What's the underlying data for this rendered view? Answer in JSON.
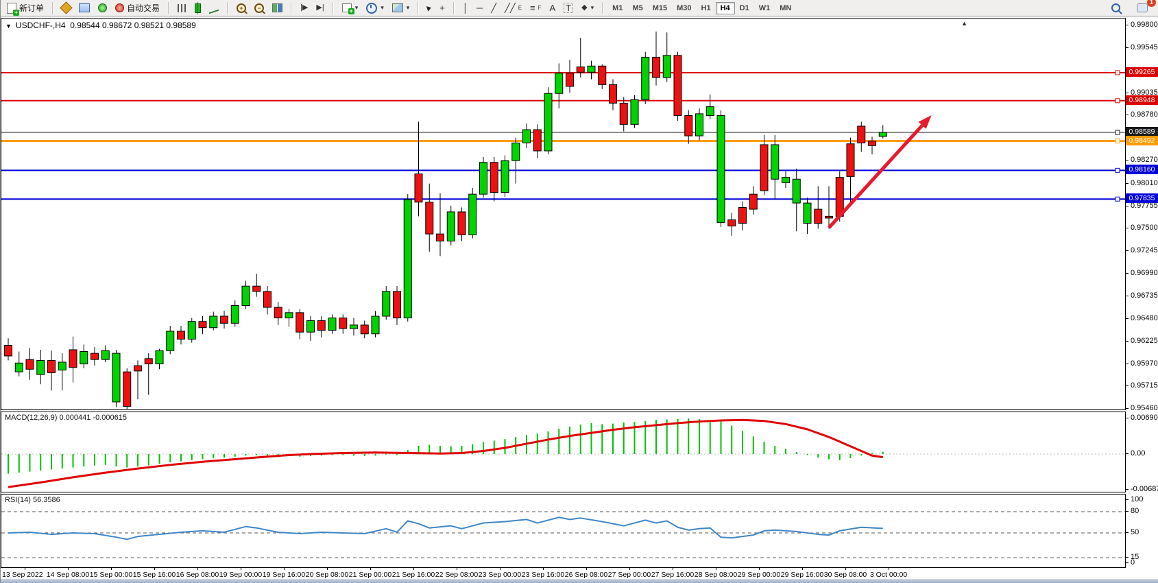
{
  "toolbar": {
    "new_order_label": "新订单",
    "autotrading_label": "自动交易",
    "text_tool_label": "A",
    "text_label_tool_label": "T",
    "channel_tool_label": "E",
    "fibonacci_tool_label": "F",
    "timeframes": [
      "M1",
      "M5",
      "M15",
      "M30",
      "H1",
      "H4",
      "D1",
      "W1",
      "MN"
    ],
    "active_timeframe": "H4",
    "notification_count": "1",
    "icons": [
      "new-order-icon",
      "indicators-icon",
      "charts-window-icon",
      "signals-icon",
      "autotrading-icon",
      "bar-chart-icon",
      "candlestick-chart-icon",
      "line-chart-icon",
      "zoom-in-icon",
      "zoom-out-icon",
      "tile-windows-icon",
      "auto-scroll-icon",
      "chart-shift-icon",
      "new-chart-icon",
      "periods-clock-icon",
      "template-icon",
      "cursor-icon",
      "crosshair-icon",
      "vertical-line-icon",
      "horizontal-line-icon",
      "trendline-icon",
      "channel-icon",
      "fibonacci-icon",
      "text-icon",
      "text-label-icon",
      "shapes-icon",
      "search-icon",
      "chat-icon"
    ]
  },
  "chart": {
    "title_symbol": "USDCHF-,H4",
    "title_ohlc": "0.98544 0.98672 0.98521 0.98589"
  },
  "chart_data": {
    "type": "candlestick",
    "symbol": "USDCHF-",
    "timeframe": "H4",
    "current_bar": {
      "open": "0.98544",
      "high": "0.98672",
      "low": "0.98521",
      "close": "0.98589"
    },
    "colors": {
      "bull": "#00d300",
      "bear": "#ee1111",
      "wick": "#000000",
      "macd_hist": "#00c300",
      "macd_signal": "#e00000",
      "rsi_line": "#3e86c8",
      "line_red": "#dd0000",
      "line_blue": "#0000d8",
      "line_orange": "#ff9c00",
      "line_black": "#1a1a1a",
      "arrow": "#e8192c"
    },
    "price_axis": {
      "max": 0.998,
      "min": 0.9546,
      "ticks": [
        "0.99800",
        "0.99545",
        "0.99035",
        "0.98780",
        "0.98270",
        "0.98010",
        "0.97755",
        "0.97500",
        "0.97245",
        "0.96990",
        "0.96735",
        "0.96480",
        "0.96225",
        "0.95970",
        "0.95715",
        "0.95460"
      ]
    },
    "horizontal_lines": [
      {
        "price": 0.99265,
        "label": "0.99265",
        "color": "#dd0000",
        "width": 2
      },
      {
        "price": 0.98948,
        "label": "0.98948",
        "color": "#dd0000",
        "width": 2
      },
      {
        "price": 0.98589,
        "label": "0.98589",
        "color": "#1a1a1a",
        "width": 1
      },
      {
        "price": 0.98492,
        "label": "0.98492",
        "color": "#ff9c00",
        "width": 3
      },
      {
        "price": 0.9816,
        "label": "0.98160",
        "color": "#0000d8",
        "width": 2
      },
      {
        "price": 0.97835,
        "label": "0.97835",
        "color": "#0000d8",
        "width": 2
      }
    ],
    "trend_arrow": {
      "from_bar": 76,
      "from_price": 0.9751,
      "to_bar": 85.5,
      "to_price": 0.98783
    },
    "candles": [
      [
        0.9618,
        0.9606,
        0.9626,
        0.9601,
        "r"
      ],
      [
        0.9598,
        0.9588,
        0.9611,
        0.9583,
        "g"
      ],
      [
        0.9602,
        0.9591,
        0.9615,
        0.9579,
        "r"
      ],
      [
        0.9601,
        0.9585,
        0.9613,
        0.9574,
        "g"
      ],
      [
        0.9601,
        0.9587,
        0.9612,
        0.9567,
        "r"
      ],
      [
        0.9599,
        0.959,
        0.9609,
        0.9567,
        "g"
      ],
      [
        0.9613,
        0.9593,
        0.9628,
        0.9576,
        "r"
      ],
      [
        0.9611,
        0.9597,
        0.9619,
        0.9592,
        "g"
      ],
      [
        0.9609,
        0.9602,
        0.9616,
        0.9595,
        "r"
      ],
      [
        0.9612,
        0.9602,
        0.9618,
        0.9599,
        "g"
      ],
      [
        0.9609,
        0.9554,
        0.9613,
        0.9548,
        "g"
      ],
      [
        0.9588,
        0.9549,
        0.9592,
        0.9546,
        "r"
      ],
      [
        0.9595,
        0.9589,
        0.9601,
        0.9557,
        "r"
      ],
      [
        0.9603,
        0.9597,
        0.9609,
        0.9562,
        "r"
      ],
      [
        0.9612,
        0.9597,
        0.9614,
        0.9591,
        "g"
      ],
      [
        0.9634,
        0.9612,
        0.964,
        0.9608,
        "g"
      ],
      [
        0.9634,
        0.9625,
        0.964,
        0.9619,
        "r"
      ],
      [
        0.9645,
        0.9625,
        0.9649,
        0.9621,
        "g"
      ],
      [
        0.9645,
        0.9638,
        0.9651,
        0.9631,
        "r"
      ],
      [
        0.9651,
        0.9638,
        0.9656,
        0.9635,
        "g"
      ],
      [
        0.9651,
        0.9643,
        0.9657,
        0.9637,
        "r"
      ],
      [
        0.9663,
        0.9643,
        0.9669,
        0.9639,
        "g"
      ],
      [
        0.9685,
        0.9663,
        0.9691,
        0.9659,
        "g"
      ],
      [
        0.9685,
        0.9679,
        0.9699,
        0.9673,
        "r"
      ],
      [
        0.9679,
        0.9661,
        0.9685,
        0.9653,
        "r"
      ],
      [
        0.9661,
        0.9649,
        0.9667,
        0.9641,
        "r"
      ],
      [
        0.9655,
        0.9649,
        0.9659,
        0.9639,
        "g"
      ],
      [
        0.9655,
        0.9633,
        0.9659,
        0.9625,
        "r"
      ],
      [
        0.9646,
        0.9633,
        0.9651,
        0.9623,
        "g"
      ],
      [
        0.9646,
        0.9635,
        0.9651,
        0.9627,
        "r"
      ],
      [
        0.9649,
        0.9635,
        0.9653,
        0.9631,
        "g"
      ],
      [
        0.9649,
        0.9637,
        0.9653,
        0.9631,
        "r"
      ],
      [
        0.9641,
        0.9637,
        0.9649,
        0.9629,
        "g"
      ],
      [
        0.9641,
        0.9631,
        0.9646,
        0.9626,
        "r"
      ],
      [
        0.9651,
        0.9631,
        0.9657,
        0.9627,
        "g"
      ],
      [
        0.9679,
        0.9651,
        0.9685,
        0.9647,
        "g"
      ],
      [
        0.9679,
        0.9649,
        0.9685,
        0.9641,
        "r"
      ],
      [
        0.9783,
        0.9649,
        0.9789,
        0.9645,
        "g"
      ],
      [
        0.9812,
        0.978,
        0.9871,
        0.9764,
        "r"
      ],
      [
        0.978,
        0.9744,
        0.9801,
        0.9724,
        "r"
      ],
      [
        0.9744,
        0.9736,
        0.979,
        0.9719,
        "r"
      ],
      [
        0.9769,
        0.9736,
        0.9776,
        0.9731,
        "g"
      ],
      [
        0.9769,
        0.9743,
        0.9774,
        0.9736,
        "r"
      ],
      [
        0.9789,
        0.9743,
        0.9796,
        0.9739,
        "g"
      ],
      [
        0.9825,
        0.9789,
        0.9831,
        0.9785,
        "g"
      ],
      [
        0.9825,
        0.9791,
        0.9831,
        0.9781,
        "r"
      ],
      [
        0.9827,
        0.9791,
        0.9833,
        0.9786,
        "g"
      ],
      [
        0.9847,
        0.9827,
        0.9853,
        0.9801,
        "g"
      ],
      [
        0.9862,
        0.9847,
        0.9869,
        0.9841,
        "g"
      ],
      [
        0.9862,
        0.9838,
        0.9868,
        0.983,
        "r"
      ],
      [
        0.9903,
        0.9838,
        0.991,
        0.9834,
        "g"
      ],
      [
        0.9926,
        0.9903,
        0.9937,
        0.9886,
        "g"
      ],
      [
        0.9926,
        0.9911,
        0.9941,
        0.9904,
        "r"
      ],
      [
        0.9933,
        0.9927,
        0.9966,
        0.9921,
        "r"
      ],
      [
        0.9934,
        0.9927,
        0.994,
        0.9919,
        "g"
      ],
      [
        0.9934,
        0.9913,
        0.9936,
        0.9908,
        "r"
      ],
      [
        0.9913,
        0.9892,
        0.9919,
        0.9884,
        "r"
      ],
      [
        0.9892,
        0.9868,
        0.9899,
        0.986,
        "r"
      ],
      [
        0.9896,
        0.9868,
        0.9901,
        0.9864,
        "g"
      ],
      [
        0.9944,
        0.9896,
        0.995,
        0.9891,
        "g"
      ],
      [
        0.9944,
        0.9921,
        0.9973,
        0.9912,
        "r"
      ],
      [
        0.9946,
        0.9921,
        0.9972,
        0.9916,
        "g"
      ],
      [
        0.9946,
        0.9878,
        0.995,
        0.9872,
        "r"
      ],
      [
        0.9878,
        0.9855,
        0.9884,
        0.9846,
        "r"
      ],
      [
        0.988,
        0.9855,
        0.9886,
        0.985,
        "g"
      ],
      [
        0.9888,
        0.9878,
        0.9902,
        0.9874,
        "g"
      ],
      [
        0.9878,
        0.9757,
        0.9884,
        0.9752,
        "g"
      ],
      [
        0.976,
        0.9753,
        0.9768,
        0.9742,
        "r"
      ],
      [
        0.9774,
        0.9756,
        0.9781,
        0.9748,
        "r"
      ],
      [
        0.9789,
        0.9772,
        0.9798,
        0.9766,
        "r"
      ],
      [
        0.9845,
        0.9793,
        0.9856,
        0.9788,
        "r"
      ],
      [
        0.9845,
        0.9806,
        0.9856,
        0.9783,
        "g"
      ],
      [
        0.9808,
        0.9802,
        0.9815,
        0.9796,
        "g"
      ],
      [
        0.9806,
        0.9779,
        0.9818,
        0.9747,
        "g"
      ],
      [
        0.9779,
        0.9756,
        0.9785,
        0.9744,
        "g"
      ],
      [
        0.9772,
        0.9756,
        0.9798,
        0.975,
        "r"
      ],
      [
        0.9764,
        0.9762,
        0.9798,
        0.975,
        "r"
      ],
      [
        0.9808,
        0.9764,
        0.9815,
        0.9758,
        "r"
      ],
      [
        0.9846,
        0.9809,
        0.9853,
        0.9778,
        "r"
      ],
      [
        0.9866,
        0.9847,
        0.9871,
        0.9837,
        "r"
      ],
      [
        0.9849,
        0.9844,
        0.9854,
        0.9834,
        "r"
      ],
      [
        0.98589,
        0.98544,
        0.98672,
        0.98521,
        "g"
      ]
    ],
    "time_axis": [
      "13 Sep 2022",
      "14 Sep 08:00",
      "15 Sep 00:00",
      "15 Sep 16:00",
      "16 Sep 08:00",
      "19 Sep 00:00",
      "19 Sep 16:00",
      "20 Sep 08:00",
      "21 Sep 00:00",
      "21 Sep 16:00",
      "22 Sep 08:00",
      "23 Sep 00:00",
      "23 Sep 16:00",
      "26 Sep 08:00",
      "27 Sep 00:00",
      "27 Sep 16:00",
      "28 Sep 08:00",
      "29 Sep 00:00",
      "29 Sep 16:00",
      "30 Sep 08:00",
      "3 Oct 00:00"
    ],
    "macd": {
      "name": "MACD(12,26,9)",
      "value": "0.000441",
      "signal_value": "-0.000615",
      "axis_ticks": [
        "0.006906",
        "0.00",
        "-0.006874"
      ],
      "axis_max": 0.006906,
      "axis_min": -0.006874,
      "histogram": [
        -0.0038,
        -0.0036,
        -0.0034,
        -0.0032,
        -0.003,
        -0.0028,
        -0.0026,
        -0.0024,
        -0.0022,
        -0.0021,
        -0.0024,
        -0.0026,
        -0.0024,
        -0.0022,
        -0.0019,
        -0.0016,
        -0.0014,
        -0.0012,
        -0.001,
        -0.0008,
        -0.0007,
        -0.0005,
        -0.0003,
        -0.0002,
        -0.0003,
        -0.0004,
        -0.0004,
        -0.0005,
        -0.0004,
        -0.0003,
        -0.0002,
        -0.0002,
        -0.0003,
        -0.0004,
        -0.0003,
        -0.0001,
        -0.0002,
        0.0008,
        0.0016,
        0.0018,
        0.0016,
        0.0015,
        0.0016,
        0.0019,
        0.0023,
        0.0026,
        0.0029,
        0.0033,
        0.0037,
        0.004,
        0.0044,
        0.0049,
        0.0053,
        0.0057,
        0.006,
        0.0058,
        0.0059,
        0.0061,
        0.0062,
        0.0064,
        0.0066,
        0.0067,
        0.0068,
        0.0069,
        0.0068,
        0.0066,
        0.0063,
        0.0055,
        0.0045,
        0.0034,
        0.0024,
        0.0016,
        0.001,
        0.0004,
        -0.0002,
        -0.0007,
        -0.001,
        -0.0012,
        -0.0008,
        -0.0003,
        0.0002,
        0.00044
      ],
      "signal": [
        [
          0,
          -0.0064
        ],
        [
          3,
          -0.0055
        ],
        [
          6,
          -0.0045
        ],
        [
          9,
          -0.0036
        ],
        [
          12,
          -0.0028
        ],
        [
          15,
          -0.0021
        ],
        [
          18,
          -0.0015
        ],
        [
          21,
          -0.001
        ],
        [
          24,
          -0.0005
        ],
        [
          26,
          -0.0002
        ],
        [
          28,
          0.0
        ],
        [
          31,
          0.0002
        ],
        [
          34,
          0.0003
        ],
        [
          37,
          0.0002
        ],
        [
          40,
          0.0001
        ],
        [
          42,
          0.0002
        ],
        [
          44,
          0.0006
        ],
        [
          46,
          0.0012
        ],
        [
          48,
          0.002
        ],
        [
          50,
          0.0028
        ],
        [
          52,
          0.0035
        ],
        [
          54,
          0.0041
        ],
        [
          56,
          0.0047
        ],
        [
          58,
          0.0052
        ],
        [
          60,
          0.0056
        ],
        [
          62,
          0.006
        ],
        [
          64,
          0.0063
        ],
        [
          66,
          0.0065
        ],
        [
          68,
          0.0066
        ],
        [
          70,
          0.0064
        ],
        [
          72,
          0.0058
        ],
        [
          74,
          0.0048
        ],
        [
          76,
          0.0033
        ],
        [
          77,
          0.0024
        ],
        [
          78,
          0.0015
        ],
        [
          79,
          0.0006
        ],
        [
          80,
          -0.0003
        ],
        [
          81,
          -0.0006
        ]
      ]
    },
    "rsi": {
      "name": "RSI(14)",
      "value": "56.3586",
      "axis_levels": [
        "100",
        "80",
        "50",
        "15",
        "0"
      ],
      "dashed_levels": [
        80,
        50,
        15
      ],
      "points": [
        [
          0,
          50
        ],
        [
          2,
          51
        ],
        [
          4,
          48
        ],
        [
          6,
          50
        ],
        [
          8,
          49
        ],
        [
          10,
          44
        ],
        [
          11,
          41
        ],
        [
          12,
          45
        ],
        [
          14,
          48
        ],
        [
          16,
          51
        ],
        [
          18,
          53
        ],
        [
          20,
          51
        ],
        [
          22,
          59
        ],
        [
          23,
          57
        ],
        [
          25,
          51
        ],
        [
          27,
          49
        ],
        [
          29,
          51
        ],
        [
          31,
          50
        ],
        [
          33,
          49
        ],
        [
          35,
          56
        ],
        [
          36,
          51
        ],
        [
          37,
          67
        ],
        [
          38,
          63
        ],
        [
          39,
          57
        ],
        [
          41,
          60
        ],
        [
          42,
          56
        ],
        [
          44,
          64
        ],
        [
          46,
          66
        ],
        [
          48,
          69
        ],
        [
          49,
          64
        ],
        [
          51,
          72
        ],
        [
          52,
          69
        ],
        [
          53,
          71
        ],
        [
          55,
          66
        ],
        [
          57,
          60
        ],
        [
          59,
          68
        ],
        [
          60,
          64
        ],
        [
          61,
          67
        ],
        [
          62,
          58
        ],
        [
          63,
          54
        ],
        [
          64,
          56
        ],
        [
          65,
          57
        ],
        [
          66,
          44
        ],
        [
          67,
          43
        ],
        [
          68,
          45
        ],
        [
          69,
          47
        ],
        [
          70,
          53
        ],
        [
          71,
          54
        ],
        [
          73,
          52
        ],
        [
          75,
          48
        ],
        [
          76,
          47
        ],
        [
          77,
          53
        ],
        [
          79,
          58
        ],
        [
          81,
          56.36
        ]
      ]
    }
  }
}
